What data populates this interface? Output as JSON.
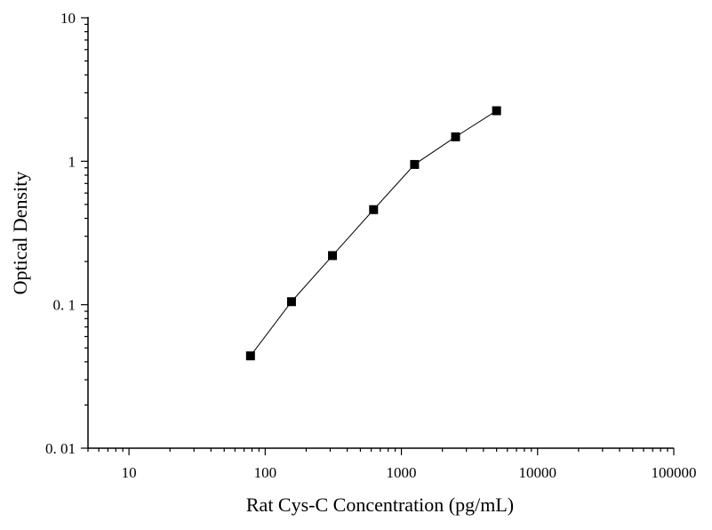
{
  "chart_data": {
    "type": "scatter",
    "xlabel": "Rat Cys-C Concentration (pg/mL)",
    "ylabel": "Optical Density",
    "x_scale": "log",
    "y_scale": "log",
    "xlim": [
      5,
      100000
    ],
    "ylim": [
      0.01,
      10
    ],
    "x_ticks": [
      {
        "value": 10,
        "label": "10"
      },
      {
        "value": 100,
        "label": "100"
      },
      {
        "value": 1000,
        "label": "1000"
      },
      {
        "value": 10000,
        "label": "10000"
      },
      {
        "value": 100000,
        "label": "100000"
      }
    ],
    "y_ticks": [
      {
        "value": 0.01,
        "label": "0. 01"
      },
      {
        "value": 0.1,
        "label": "0. 1"
      },
      {
        "value": 1,
        "label": "1"
      },
      {
        "value": 10,
        "label": "10"
      }
    ],
    "grid": false,
    "marker": "square",
    "color": "#000000",
    "series": [
      {
        "x": [
          78,
          156,
          312,
          625,
          1250,
          2500,
          5000
        ],
        "y": [
          0.044,
          0.105,
          0.22,
          0.46,
          0.95,
          1.48,
          2.25
        ]
      }
    ]
  }
}
